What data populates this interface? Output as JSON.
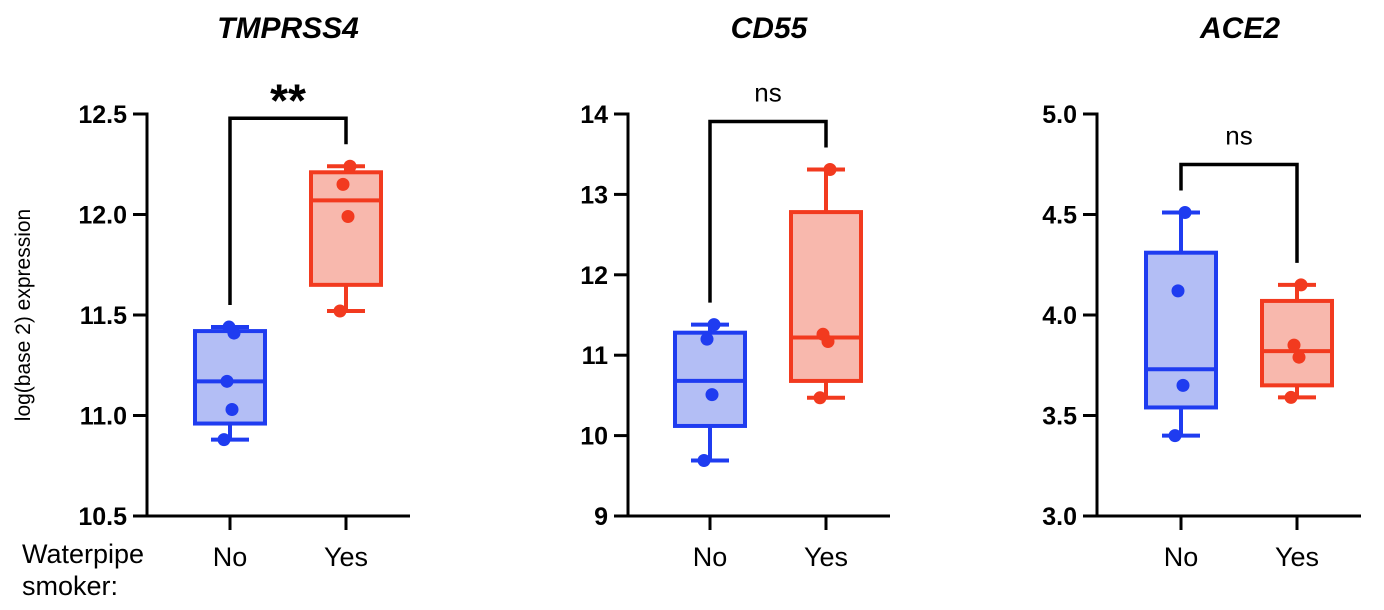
{
  "colors": {
    "No": "#1f3cf0",
    "No_fill": "#b3bef5",
    "Yes": "#f23a1f",
    "Yes_fill": "#f8b8ad",
    "axis": "#000000"
  },
  "x_caption": "Waterpipe\nsmoker:",
  "chart_data": [
    {
      "type": "box",
      "title": "TMPRSS4",
      "ylabel": "log(base 2) expression",
      "ylim": [
        10.5,
        12.5
      ],
      "yticks": [
        "10.5",
        "11.0",
        "11.5",
        "12.0",
        "12.5"
      ],
      "categories": [
        "No",
        "Yes"
      ],
      "significance": "**",
      "series": [
        {
          "group": "No",
          "min": 10.88,
          "q1": 10.96,
          "median": 11.17,
          "q3": 11.42,
          "max": 11.44,
          "points": [
            10.88,
            11.03,
            11.17,
            11.41,
            11.44
          ]
        },
        {
          "group": "Yes",
          "min": 11.52,
          "q1": 11.65,
          "median": 12.07,
          "q3": 12.21,
          "max": 12.24,
          "points": [
            11.52,
            11.99,
            12.15,
            12.24
          ]
        }
      ]
    },
    {
      "type": "box",
      "title": "CD55",
      "ylabel": "",
      "ylim": [
        9,
        14
      ],
      "yticks": [
        "9",
        "10",
        "11",
        "12",
        "13",
        "14"
      ],
      "categories": [
        "No",
        "Yes"
      ],
      "significance": "ns",
      "series": [
        {
          "group": "No",
          "min": 9.69,
          "q1": 10.12,
          "median": 10.68,
          "q3": 11.28,
          "max": 11.38,
          "points": [
            9.69,
            10.51,
            11.2,
            11.38
          ]
        },
        {
          "group": "Yes",
          "min": 10.47,
          "q1": 10.68,
          "median": 11.22,
          "q3": 12.78,
          "max": 13.31,
          "points": [
            10.47,
            11.17,
            11.26,
            13.31
          ]
        }
      ]
    },
    {
      "type": "box",
      "title": "ACE2",
      "ylabel": "",
      "ylim": [
        3.0,
        5.0
      ],
      "yticks": [
        "3.0",
        "3.5",
        "4.0",
        "4.5",
        "5.0"
      ],
      "categories": [
        "No",
        "Yes"
      ],
      "significance": "ns",
      "series": [
        {
          "group": "No",
          "min": 3.4,
          "q1": 3.54,
          "median": 3.73,
          "q3": 4.31,
          "max": 4.51,
          "points": [
            3.4,
            3.65,
            4.12,
            4.51
          ]
        },
        {
          "group": "Yes",
          "min": 3.59,
          "q1": 3.65,
          "median": 3.82,
          "q3": 4.07,
          "max": 4.15,
          "points": [
            3.59,
            3.79,
            3.85,
            4.15
          ]
        }
      ]
    }
  ]
}
